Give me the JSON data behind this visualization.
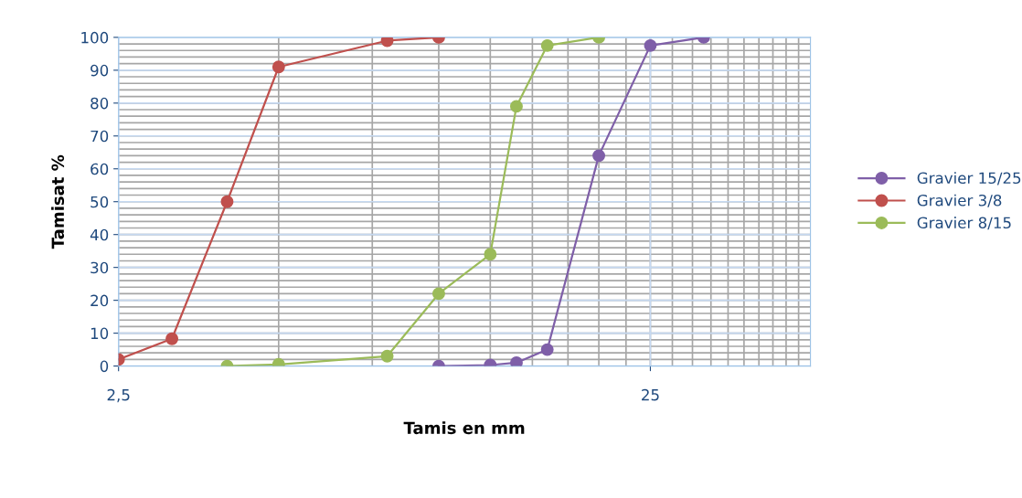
{
  "chart_data": {
    "type": "line",
    "xlabel": "Tamis en mm",
    "ylabel": "Tamisat %",
    "log": "x",
    "xlim": [
      2.5,
      50
    ],
    "xticks": [
      {
        "value": 2.5,
        "label": "2,5"
      },
      25
    ],
    "ylim": [
      0,
      100
    ],
    "yticks": [
      0,
      10,
      20,
      30,
      40,
      50,
      60,
      70,
      80,
      90,
      100
    ],
    "grid": true,
    "legend": "right",
    "marker": "circle",
    "line_style": "solid",
    "series": [
      {
        "name": "Gravier 15/25",
        "color": "#7f5fa8",
        "x": [
          10,
          12.5,
          14,
          16,
          20,
          25,
          31.5
        ],
        "values": [
          0,
          0.3,
          1,
          5,
          64,
          97.5,
          100
        ]
      },
      {
        "name": "Gravier 3/8",
        "color": "#c0504d",
        "x": [
          2.5,
          3.15,
          4,
          5,
          8,
          10
        ],
        "values": [
          2,
          8.3,
          50,
          91,
          99,
          100
        ]
      },
      {
        "name": "Gravier 8/15",
        "color": "#9bbb59",
        "x": [
          4,
          5,
          8,
          10,
          12.5,
          14,
          16,
          20
        ],
        "values": [
          0,
          0.5,
          3,
          22,
          34,
          79,
          97.5,
          100
        ]
      }
    ]
  }
}
